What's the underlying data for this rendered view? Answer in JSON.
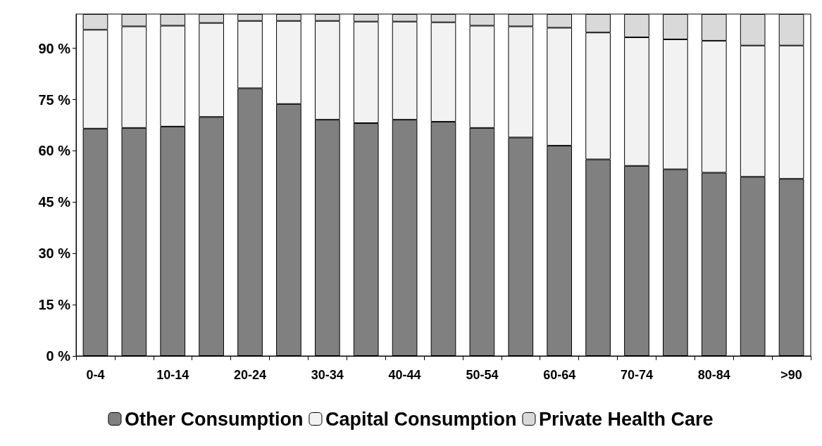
{
  "chart_data": {
    "type": "bar",
    "stacked": true,
    "categories": [
      "0-4",
      null,
      "10-14",
      null,
      "20-24",
      null,
      "30-34",
      null,
      "40-44",
      null,
      "50-54",
      null,
      "60-64",
      null,
      "70-74",
      null,
      "80-84",
      null,
      ">90"
    ],
    "series": [
      {
        "name": "Other Consumption",
        "color": "#808080",
        "values": [
          66.5,
          66.7,
          67.1,
          69.9,
          78.3,
          73.7,
          69.1,
          68.1,
          69.1,
          68.5,
          66.7,
          63.9,
          61.5,
          57.5,
          55.6,
          54.6,
          53.6,
          52.4,
          51.8
        ]
      },
      {
        "name": "Capital Consumption",
        "color": "#f2f2f2",
        "values": [
          28.9,
          29.7,
          29.5,
          27.5,
          19.7,
          24.3,
          28.9,
          29.7,
          28.7,
          29.1,
          29.9,
          32.5,
          34.5,
          37.1,
          37.6,
          38.0,
          38.6,
          38.4,
          39.0
        ]
      },
      {
        "name": "Private Health Care",
        "color": "#d9d9d9",
        "values": [
          4.6,
          3.6,
          3.4,
          2.6,
          2.0,
          2.0,
          2.0,
          2.2,
          2.2,
          2.4,
          3.4,
          3.6,
          4.0,
          5.4,
          6.8,
          7.4,
          7.8,
          9.2,
          9.2
        ]
      }
    ],
    "ylim": [
      0,
      100
    ],
    "yticks": [
      {
        "value": 0,
        "label": "0 %"
      },
      {
        "value": 15,
        "label": "15 %"
      },
      {
        "value": 30,
        "label": "30 %"
      },
      {
        "value": 45,
        "label": "45 %"
      },
      {
        "value": 60,
        "label": "60 %"
      },
      {
        "value": 75,
        "label": "75 %"
      },
      {
        "value": 90,
        "label": "90 %"
      }
    ],
    "grid": false,
    "legend": "bottom"
  }
}
